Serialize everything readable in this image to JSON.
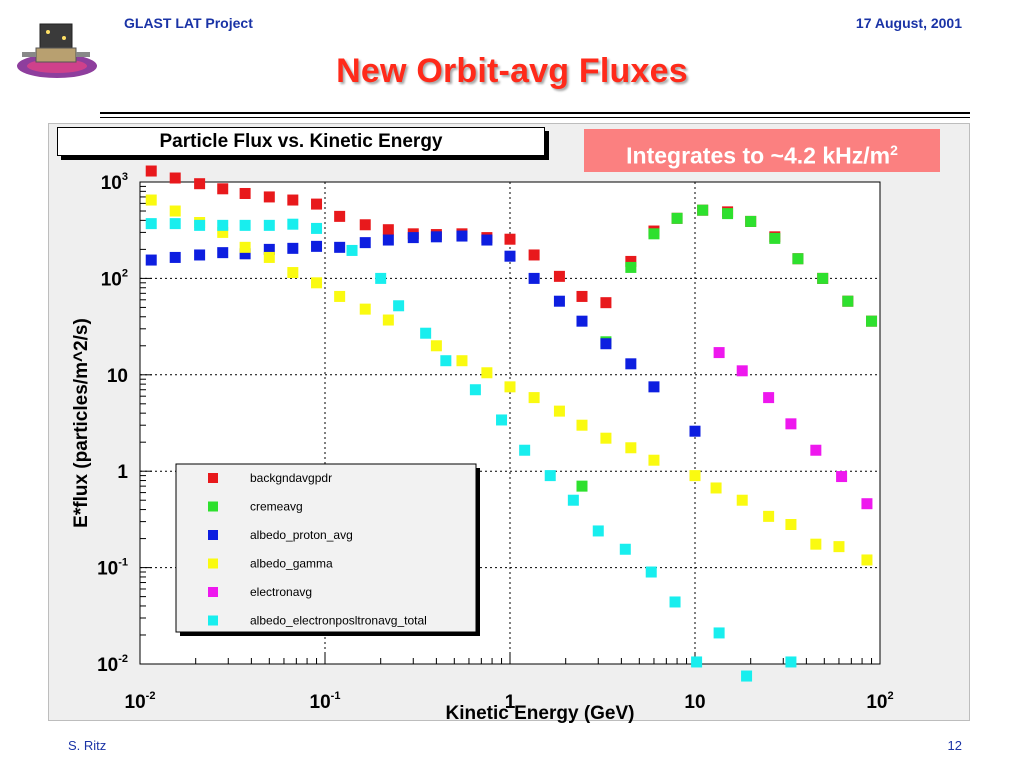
{
  "slide": {
    "header_left": "GLAST LAT Project",
    "header_right": "17 August, 2001",
    "title": "New Orbit-avg Fluxes",
    "footer_left": "S. Ritz",
    "footer_right": "12",
    "badge_text": "Integrates to ~4.2 kHz/m",
    "badge_sup": "2",
    "badge_color": "#fb8080",
    "title_color": "#ff2a1a",
    "header_color": "#1a33a6"
  },
  "chart_data": {
    "type": "scatter",
    "title": "Particle Flux vs. Kinetic Energy",
    "xlabel": "Kinetic Energy (GeV)",
    "ylabel": "E*flux (particles/m^2/s)",
    "xscale": "log",
    "yscale": "log",
    "xlim": [
      0.01,
      100
    ],
    "ylim": [
      0.01,
      1000
    ],
    "grid": true,
    "legend_position": "bottom-left",
    "x_ticks": [
      {
        "value": 0.01,
        "base": "10",
        "exp": "-2"
      },
      {
        "value": 0.1,
        "base": "10",
        "exp": "-1"
      },
      {
        "value": 1,
        "base": "1",
        "exp": ""
      },
      {
        "value": 10,
        "base": "10",
        "exp": ""
      },
      {
        "value": 100,
        "base": "10",
        "exp": "2"
      }
    ],
    "y_ticks": [
      {
        "value": 1000,
        "base": "10",
        "exp": "3"
      },
      {
        "value": 100,
        "base": "10",
        "exp": "2"
      },
      {
        "value": 10,
        "base": "10",
        "exp": ""
      },
      {
        "value": 1,
        "base": "1",
        "exp": ""
      },
      {
        "value": 0.1,
        "base": "10",
        "exp": "-1"
      },
      {
        "value": 0.01,
        "base": "10",
        "exp": "-2"
      }
    ],
    "series": [
      {
        "name": "backgndavgpdr",
        "color": "#e8191c",
        "points": [
          [
            0.0115,
            1300
          ],
          [
            0.0155,
            1100
          ],
          [
            0.021,
            960
          ],
          [
            0.028,
            850
          ],
          [
            0.037,
            760
          ],
          [
            0.05,
            700
          ],
          [
            0.067,
            650
          ],
          [
            0.09,
            590
          ],
          [
            0.12,
            440
          ],
          [
            0.165,
            360
          ],
          [
            0.22,
            320
          ],
          [
            0.3,
            290
          ],
          [
            0.4,
            285
          ],
          [
            0.55,
            290
          ],
          [
            0.75,
            265
          ],
          [
            1.0,
            255
          ],
          [
            1.35,
            175
          ],
          [
            1.85,
            105
          ],
          [
            2.45,
            65
          ],
          [
            3.3,
            56
          ],
          [
            4.5,
            150
          ],
          [
            6.0,
            310
          ],
          [
            8.0,
            420
          ],
          [
            11.0,
            510
          ],
          [
            15.0,
            490
          ],
          [
            20.0,
            390
          ],
          [
            27.0,
            270
          ],
          [
            36.0,
            160
          ],
          [
            49.0,
            100
          ],
          [
            67.0,
            58
          ],
          [
            90.0,
            36
          ]
        ]
      },
      {
        "name": "cremeavg",
        "color": "#2ee02e",
        "points": [
          [
            2.45,
            0.7
          ],
          [
            3.3,
            22
          ],
          [
            4.5,
            130
          ],
          [
            6.0,
            290
          ],
          [
            8.0,
            420
          ],
          [
            11.0,
            510
          ],
          [
            15.0,
            470
          ],
          [
            20.0,
            390
          ],
          [
            27.0,
            260
          ],
          [
            36.0,
            160
          ],
          [
            49.0,
            100
          ],
          [
            67.0,
            58
          ],
          [
            90.0,
            36
          ]
        ]
      },
      {
        "name": "albedo_proton_avg",
        "color": "#0d1ee0",
        "points": [
          [
            0.0115,
            155
          ],
          [
            0.0155,
            165
          ],
          [
            0.021,
            175
          ],
          [
            0.028,
            185
          ],
          [
            0.037,
            180
          ],
          [
            0.05,
            200
          ],
          [
            0.067,
            205
          ],
          [
            0.09,
            215
          ],
          [
            0.12,
            210
          ],
          [
            0.165,
            235
          ],
          [
            0.22,
            250
          ],
          [
            0.3,
            265
          ],
          [
            0.4,
            270
          ],
          [
            0.55,
            275
          ],
          [
            0.75,
            250
          ],
          [
            1.0,
            170
          ],
          [
            1.35,
            100
          ],
          [
            1.85,
            58
          ],
          [
            2.45,
            36
          ],
          [
            3.3,
            21
          ],
          [
            4.5,
            13
          ],
          [
            6.0,
            7.5
          ],
          [
            10.0,
            2.6
          ]
        ]
      },
      {
        "name": "albedo_gamma",
        "color": "#fafa10",
        "points": [
          [
            0.0115,
            650
          ],
          [
            0.0155,
            500
          ],
          [
            0.021,
            380
          ],
          [
            0.028,
            300
          ],
          [
            0.037,
            210
          ],
          [
            0.05,
            165
          ],
          [
            0.067,
            115
          ],
          [
            0.09,
            90
          ],
          [
            0.12,
            65
          ],
          [
            0.165,
            48
          ],
          [
            0.22,
            37
          ],
          [
            0.4,
            20
          ],
          [
            0.55,
            14
          ],
          [
            0.75,
            10.5
          ],
          [
            1.0,
            7.5
          ],
          [
            1.35,
            5.8
          ],
          [
            1.85,
            4.2
          ],
          [
            2.45,
            3.0
          ],
          [
            3.3,
            2.2
          ],
          [
            4.5,
            1.75
          ],
          [
            6.0,
            1.3
          ],
          [
            10.0,
            0.9
          ],
          [
            13.0,
            0.67
          ],
          [
            18.0,
            0.5
          ],
          [
            25.0,
            0.34
          ],
          [
            33.0,
            0.28
          ],
          [
            45.0,
            0.175
          ],
          [
            60.0,
            0.165
          ],
          [
            85.0,
            0.12
          ]
        ]
      },
      {
        "name": "electronavg",
        "color": "#ee18ee",
        "points": [
          [
            13.5,
            17
          ],
          [
            18.0,
            11
          ],
          [
            25.0,
            5.8
          ],
          [
            33.0,
            3.1
          ],
          [
            45.0,
            1.65
          ],
          [
            62.0,
            0.88
          ],
          [
            85.0,
            0.46
          ]
        ]
      },
      {
        "name": "albedo_electronposltronavg_total",
        "color": "#18eeee",
        "points": [
          [
            0.0115,
            370
          ],
          [
            0.0155,
            370
          ],
          [
            0.021,
            355
          ],
          [
            0.028,
            355
          ],
          [
            0.037,
            355
          ],
          [
            0.05,
            355
          ],
          [
            0.067,
            365
          ],
          [
            0.09,
            330
          ],
          [
            0.14,
            195
          ],
          [
            0.2,
            100
          ],
          [
            0.25,
            52
          ],
          [
            0.35,
            27
          ],
          [
            0.45,
            14
          ],
          [
            0.65,
            7
          ],
          [
            0.9,
            3.4
          ],
          [
            1.2,
            1.65
          ],
          [
            1.65,
            0.9
          ],
          [
            2.2,
            0.5
          ],
          [
            3.0,
            0.24
          ],
          [
            4.2,
            0.155
          ],
          [
            5.8,
            0.09
          ],
          [
            7.8,
            0.044
          ],
          [
            10.2,
            0.0105
          ],
          [
            13.5,
            0.021
          ],
          [
            19.0,
            0.0075
          ],
          [
            33.0,
            0.0105
          ]
        ]
      }
    ]
  }
}
